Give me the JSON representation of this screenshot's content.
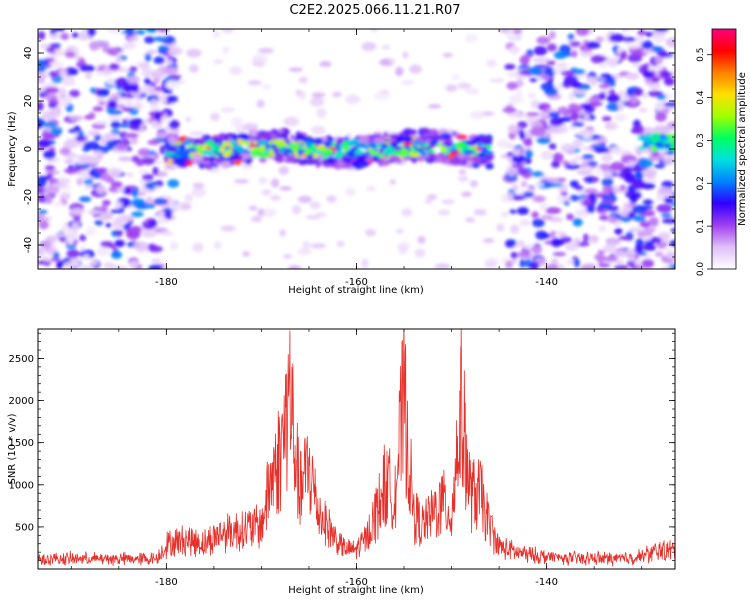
{
  "title": "C2E2.2025.066.11.21.R07",
  "colors": {
    "snr_line": "#e8302a",
    "background": "#ffffff"
  },
  "chart_data": [
    {
      "type": "heatmap",
      "xlabel": "Height of straight line (km)",
      "ylabel": "Frequency (Hz)",
      "xlim": [
        -193.5,
        -126.5
      ],
      "ylim": [
        -50,
        50
      ],
      "x_ticks": [
        -180,
        -160,
        -140
      ],
      "x_tick_labels": [
        "-180",
        "-160",
        "-140"
      ],
      "y_ticks": [
        40,
        20,
        0,
        -20,
        -40
      ],
      "y_tick_labels": [
        "40",
        "20",
        "0",
        "-20",
        "-40"
      ],
      "colorbar": {
        "label": "Normalized spectral amplitude",
        "range": [
          0.0,
          0.56
        ],
        "ticks": [
          0.0,
          0.1,
          0.2,
          0.3,
          0.4,
          0.5
        ],
        "tick_labels": [
          "0.0",
          "0.1",
          "0.2",
          "0.3",
          "0.4",
          "0.5"
        ],
        "colors": [
          "#ffffff",
          "#e0c0f8",
          "#a040f0",
          "#3000ff",
          "#0080ff",
          "#00e0e0",
          "#00ff60",
          "#a0ff00",
          "#ffe000",
          "#ff8000",
          "#ff0000",
          "#ff0080"
        ]
      },
      "signal_band": {
        "frequency_center": 0,
        "x_start": -180,
        "x_end": -146,
        "peak_amplitude": 0.55
      }
    },
    {
      "type": "line",
      "xlabel": "Height of straight line (km)",
      "ylabel": "SNR (10 * v/v)",
      "xlim": [
        -193.5,
        -126.5
      ],
      "ylim": [
        0,
        2850
      ],
      "x_ticks": [
        -180,
        -160,
        -140
      ],
      "x_tick_labels": [
        "-180",
        "-160",
        "-140"
      ],
      "y_ticks": [
        500,
        1000,
        1500,
        2000,
        2500
      ],
      "y_tick_labels": [
        "500",
        "1000",
        "1500",
        "2000",
        "2500"
      ],
      "series": [
        {
          "x": [
            -193.5,
            -190,
            -185,
            -181,
            -180,
            -178,
            -176,
            -174,
            -172,
            -170,
            -169,
            -168,
            -167,
            -166,
            -165,
            -164,
            -163,
            -162,
            -161,
            -160,
            -159,
            -158,
            -157,
            -156,
            -155,
            -154,
            -153,
            -152,
            -151,
            -150,
            -149,
            -148,
            -147,
            -146,
            -145,
            -144,
            -143,
            -142,
            -140,
            -138,
            -135,
            -132,
            -130,
            -128,
            -126.5
          ],
          "y": [
            160,
            170,
            165,
            170,
            400,
            480,
            420,
            600,
            650,
            700,
            1480,
            1880,
            2830,
            1240,
            1680,
            930,
            700,
            450,
            300,
            330,
            500,
            900,
            1380,
            1220,
            2790,
            900,
            700,
            900,
            1100,
            870,
            2650,
            1200,
            1230,
            700,
            360,
            320,
            260,
            240,
            200,
            175,
            175,
            170,
            210,
            310,
            300
          ]
        }
      ]
    }
  ]
}
